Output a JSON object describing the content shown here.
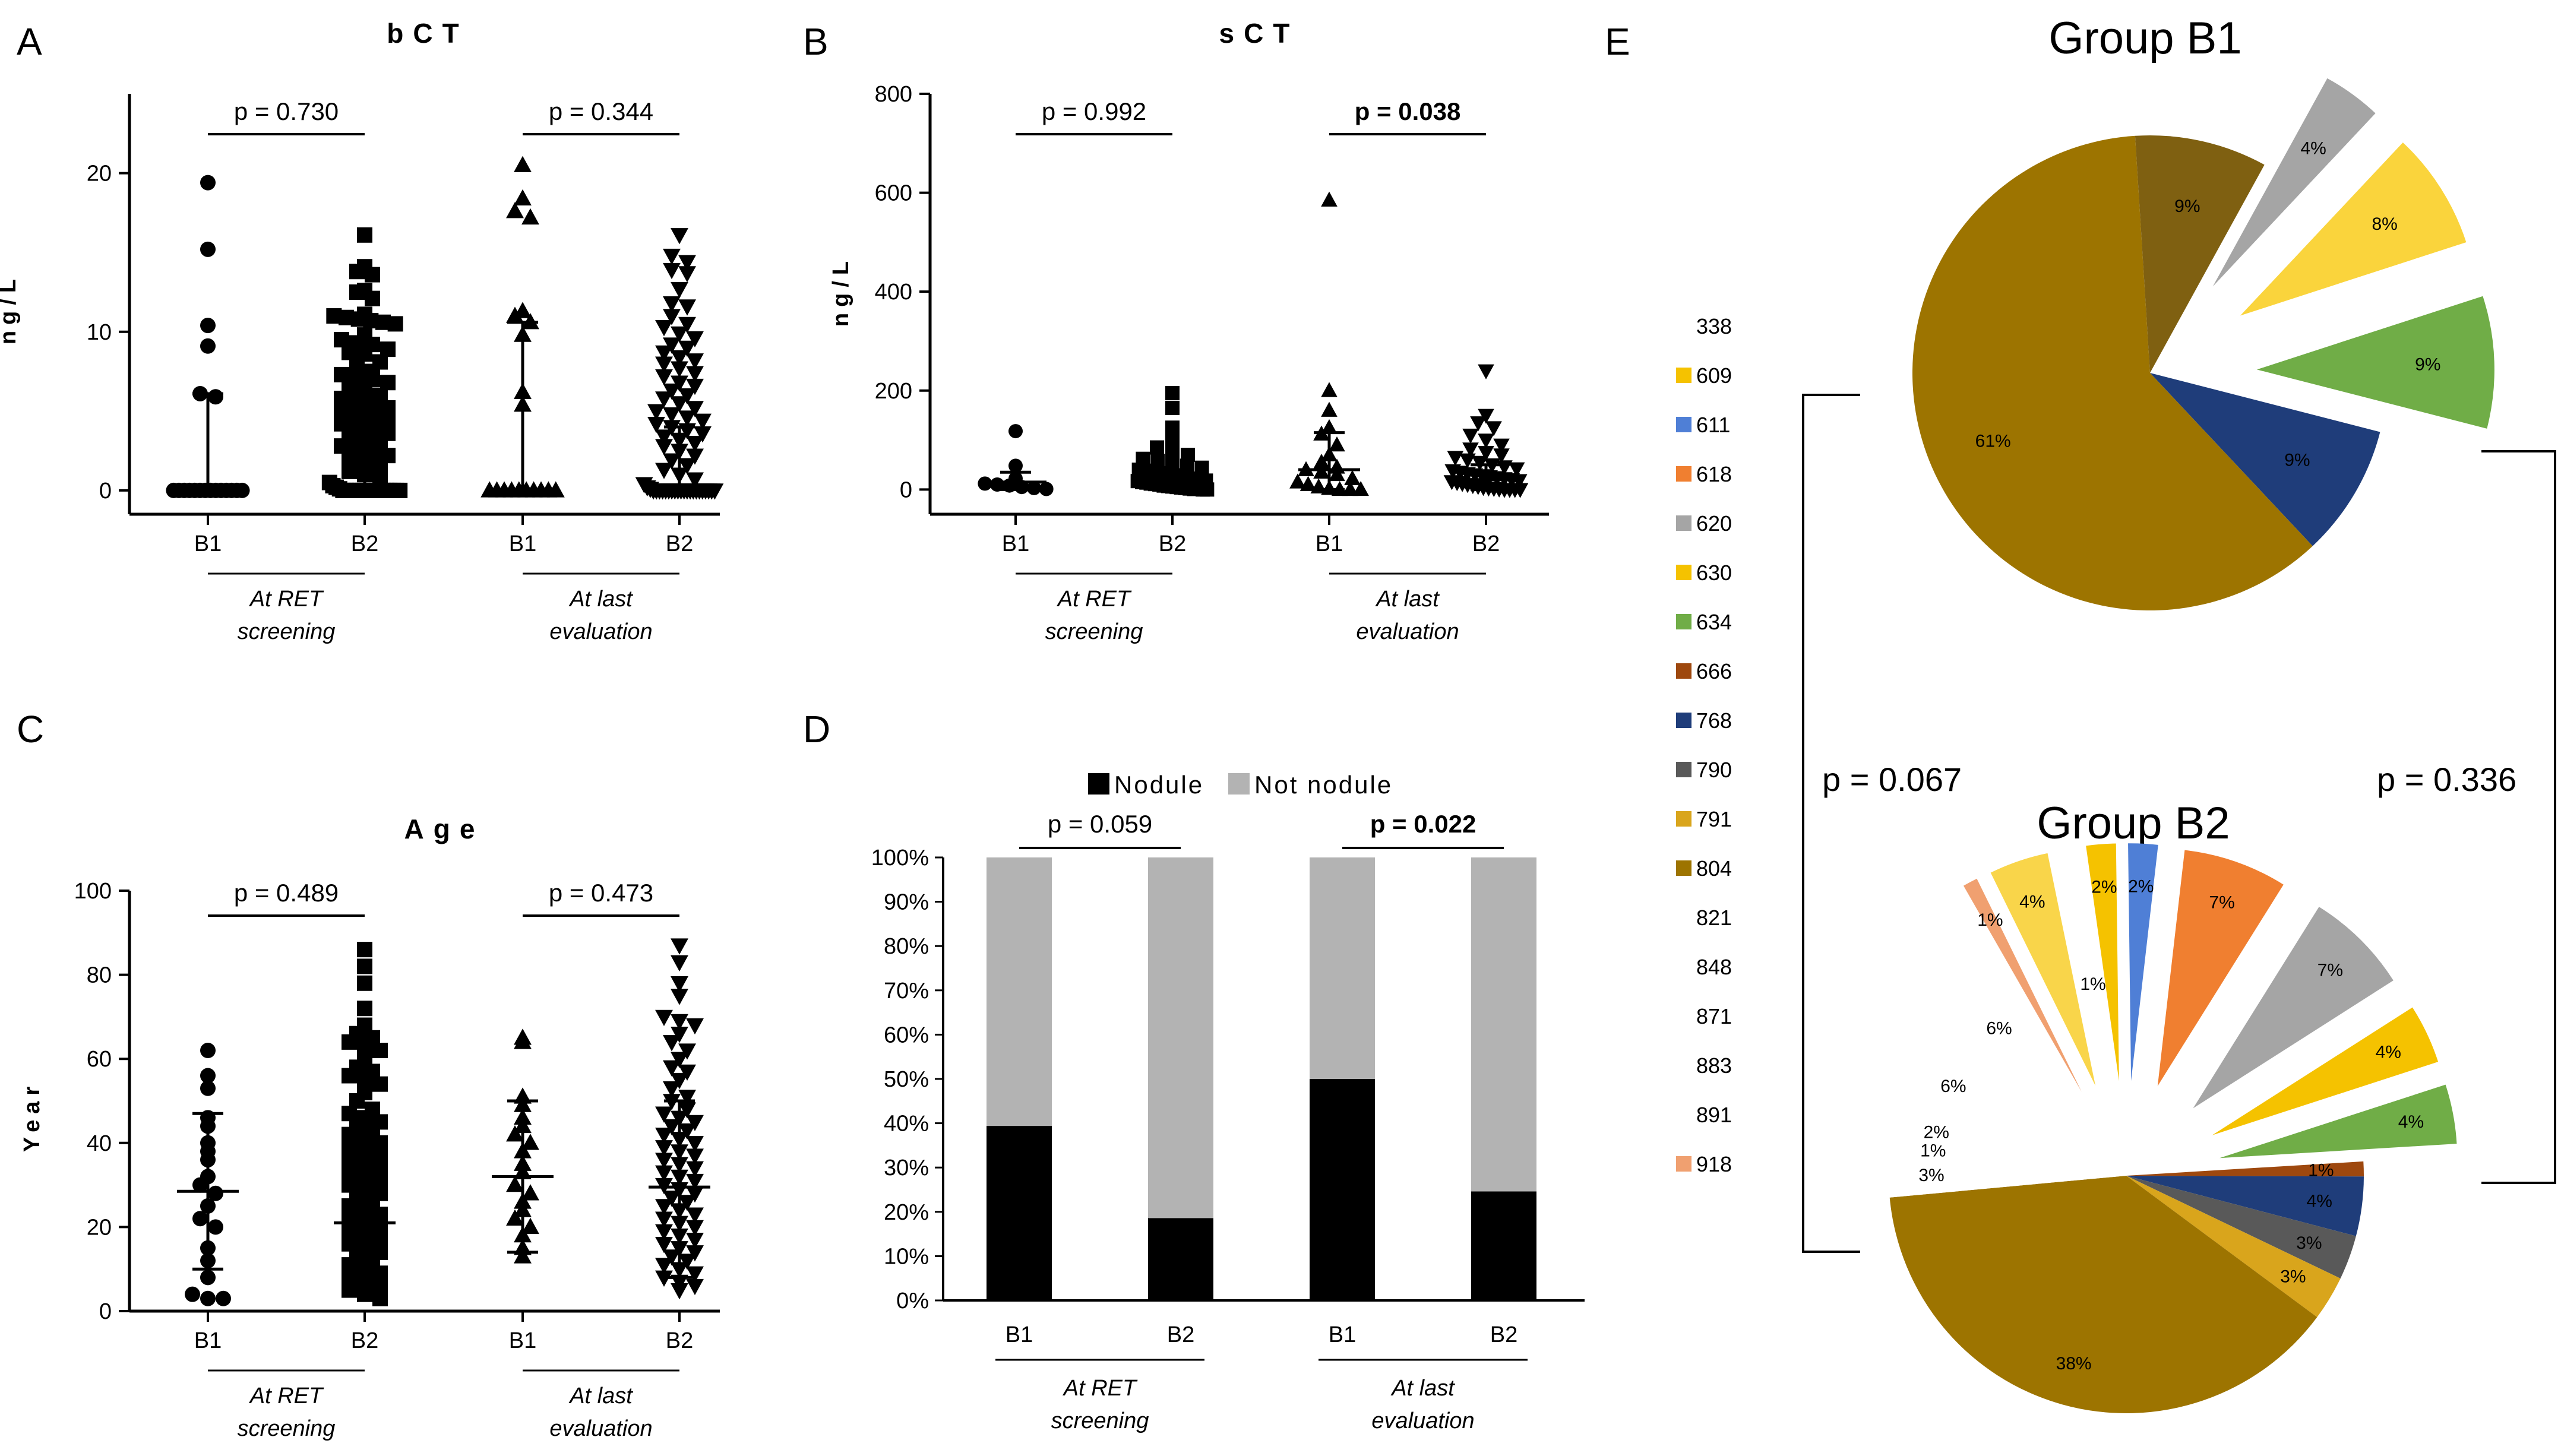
{
  "figure": {
    "panel_labels": [
      "A",
      "B",
      "C",
      "D",
      "E"
    ],
    "axis_category_labels": [
      "B1",
      "B2",
      "B1",
      "B2"
    ],
    "group_labels": [
      {
        "line1": "At RET",
        "line2": "screening"
      },
      {
        "line1": "At last",
        "line2": "evaluation"
      }
    ]
  },
  "chart_data": [
    {
      "panel": "A",
      "type": "scatter",
      "title": "bCT",
      "ylabel": "ng/L",
      "ylim": [
        -1.5,
        25
      ],
      "yticks": [
        "0",
        "10",
        "20"
      ],
      "categories": [
        "B1",
        "B2",
        "B1",
        "B2"
      ],
      "comparisons": [
        {
          "text": "p = 0.730",
          "bold": false,
          "between": [
            0,
            1
          ]
        },
        {
          "text": "p = 0.344",
          "bold": false,
          "between": [
            2,
            3
          ]
        }
      ],
      "series": [
        {
          "name": "B1 at RET screening",
          "marker": "circle",
          "median": 0,
          "iqr": [
            0,
            6.1
          ],
          "values": [
            19.4,
            15.2,
            10.4,
            9.1,
            6.1,
            5.9,
            0,
            0,
            0,
            0,
            0,
            0,
            0,
            0,
            0,
            0,
            0,
            0,
            0,
            0
          ]
        },
        {
          "name": "B2 at RET screening",
          "marker": "square",
          "median": 0,
          "iqr": [
            0,
            4.1
          ],
          "values": [
            16.1,
            14.1,
            13.8,
            13.6,
            12.6,
            12.5,
            12.1,
            11.1,
            11.0,
            10.9,
            10.8,
            10.7,
            10.6,
            10.5,
            9.8,
            9.5,
            9.3,
            9.2,
            8.9,
            8.7,
            8.6,
            8.1,
            7.9,
            7.5,
            7.3,
            7.1,
            7.0,
            6.8,
            6.5,
            6.2,
            6.0,
            5.8,
            5.6,
            5.4,
            5.2,
            5.0,
            4.8,
            4.6,
            4.4,
            4.2,
            4.0,
            3.8,
            3.6,
            3.4,
            3.2,
            3.0,
            2.8,
            2.6,
            2.4,
            2.2,
            2.0,
            1.8,
            1.5,
            1.2,
            1.0,
            0.8,
            0.5,
            0.3,
            0.2,
            0.1,
            0,
            0,
            0,
            0,
            0,
            0,
            0,
            0,
            0,
            0,
            0,
            0,
            0,
            0,
            0,
            0,
            0,
            0
          ]
        },
        {
          "name": "B1 at last evaluation",
          "marker": "triangle",
          "median": 0,
          "iqr": [
            0,
            10.6
          ],
          "values": [
            20.5,
            18.4,
            17.6,
            17.2,
            11.3,
            11.0,
            10.6,
            9.8,
            6.2,
            5.4,
            0,
            0,
            0,
            0,
            0,
            0,
            0,
            0,
            0,
            0
          ]
        },
        {
          "name": "B2 at last evaluation",
          "marker": "triangle-down",
          "median": 0.1,
          "iqr": [
            0,
            4.0
          ],
          "values": [
            16.1,
            14.8,
            14.4,
            13.9,
            13.7,
            12.7,
            11.8,
            11.6,
            11.0,
            10.5,
            10.3,
            9.9,
            9.6,
            9.2,
            9.0,
            8.7,
            8.4,
            8.2,
            8.0,
            7.7,
            7.4,
            7.2,
            6.8,
            6.6,
            6.3,
            6.0,
            5.8,
            5.5,
            5.2,
            5.0,
            4.8,
            4.6,
            4.4,
            4.2,
            4.0,
            3.8,
            3.6,
            3.4,
            3.2,
            3.0,
            2.8,
            2.5,
            2.2,
            1.9,
            1.6,
            1.3,
            1.0,
            0.7,
            0.4,
            0.2,
            0.1,
            0,
            0,
            0,
            0,
            0,
            0,
            0,
            0,
            0,
            0,
            0,
            0,
            0,
            0,
            0,
            0,
            0,
            0,
            0,
            0,
            0
          ]
        }
      ]
    },
    {
      "panel": "B",
      "type": "scatter",
      "title": "sCT",
      "ylabel": "ng/L",
      "ylim": [
        -50,
        800
      ],
      "yticks": [
        "0",
        "200",
        "400",
        "600",
        "800"
      ],
      "categories": [
        "B1",
        "B2",
        "B1",
        "B2"
      ],
      "comparisons": [
        {
          "text": "p = 0.992",
          "bold": false,
          "between": [
            0,
            1
          ]
        },
        {
          "text": "p = 0.038",
          "bold": true,
          "between": [
            2,
            3
          ]
        }
      ],
      "series": [
        {
          "name": "B1 at RET screening",
          "marker": "circle",
          "median": 15,
          "iqr": [
            0,
            35
          ],
          "values": [
            118,
            48,
            22,
            12,
            10,
            8,
            5,
            3,
            1
          ]
        },
        {
          "name": "B2 at RET screening",
          "marker": "square",
          "median": 20,
          "iqr": [
            0,
            40
          ],
          "values": [
            195,
            165,
            125,
            100,
            85,
            75,
            70,
            62,
            58,
            52,
            48,
            44,
            40,
            38,
            35,
            33,
            30,
            28,
            26,
            24,
            22,
            20,
            18,
            17,
            15,
            14,
            12,
            11,
            10,
            8,
            7,
            6,
            5,
            4,
            3,
            2,
            1,
            1,
            0,
            0
          ]
        },
        {
          "name": "B1 at last evaluation",
          "marker": "triangle",
          "median": 40,
          "iqr": [
            0,
            115
          ],
          "values": [
            585,
            200,
            160,
            125,
            112,
            90,
            70,
            55,
            45,
            40,
            35,
            30,
            22,
            15,
            10,
            5,
            2,
            0,
            0,
            0
          ]
        },
        {
          "name": "B2 at last evaluation",
          "marker": "triangle-down",
          "median": 20,
          "iqr": [
            0,
            50
          ],
          "values": [
            240,
            150,
            135,
            125,
            110,
            100,
            90,
            82,
            75,
            70,
            65,
            60,
            55,
            50,
            46,
            42,
            38,
            35,
            32,
            30,
            28,
            26,
            24,
            22,
            20,
            18,
            16,
            14,
            12,
            10,
            8,
            6,
            4,
            3,
            2,
            1,
            0,
            0,
            0,
            0
          ]
        }
      ]
    },
    {
      "panel": "C",
      "type": "scatter",
      "title": "Age",
      "ylabel": "Year",
      "ylim": [
        0,
        100
      ],
      "yticks": [
        "0",
        "20",
        "40",
        "60",
        "80",
        "100"
      ],
      "categories": [
        "B1",
        "B2",
        "B1",
        "B2"
      ],
      "comparisons": [
        {
          "text": "p = 0.489",
          "bold": false,
          "between": [
            0,
            1
          ]
        },
        {
          "text": "p = 0.473",
          "bold": false,
          "between": [
            2,
            3
          ]
        }
      ],
      "series": [
        {
          "name": "B1 at RET screening",
          "marker": "circle",
          "mean": 28.5,
          "sd_range": [
            10,
            47
          ],
          "values": [
            62,
            56,
            53,
            46,
            44,
            40,
            38,
            36,
            32,
            30,
            28,
            25,
            22,
            20,
            15,
            12,
            8,
            4,
            3,
            3
          ]
        },
        {
          "name": "B2 at RET screening",
          "marker": "square",
          "mean": 21,
          "sd_range": [
            5,
            39
          ],
          "values": [
            86,
            82,
            78,
            72,
            68,
            66,
            65,
            64,
            63,
            62,
            60,
            58,
            57,
            56,
            55,
            54,
            52,
            50,
            48,
            47,
            46,
            45,
            44,
            43,
            42,
            41,
            40,
            39,
            38,
            37,
            36,
            35,
            34,
            33,
            32,
            31,
            30,
            29,
            28,
            27,
            26,
            25,
            24,
            23,
            22,
            21,
            20,
            19,
            18,
            17,
            16,
            15,
            14,
            13,
            12,
            11,
            10,
            9,
            8,
            7,
            6,
            5,
            4,
            3
          ]
        },
        {
          "name": "B1 at last evaluation",
          "marker": "triangle",
          "mean": 32,
          "sd_range": [
            14,
            50
          ],
          "values": [
            65,
            64,
            51,
            49,
            46,
            44,
            42,
            40,
            38,
            35,
            33,
            30,
            28,
            26,
            24,
            22,
            20,
            18,
            15,
            13
          ]
        },
        {
          "name": "B2 at last evaluation",
          "marker": "triangle-down",
          "mean": 29.5,
          "sd_range": [
            8,
            50
          ],
          "values": [
            87,
            83,
            78,
            75,
            70,
            69,
            68,
            66,
            64,
            62,
            60,
            58,
            57,
            55,
            53,
            51,
            50,
            48,
            47,
            46,
            45,
            44,
            43,
            42,
            41,
            40,
            39,
            38,
            37,
            36,
            35,
            34,
            33,
            32,
            31,
            30,
            29,
            28,
            27,
            26,
            25,
            24,
            23,
            22,
            21,
            20,
            19,
            18,
            17,
            16,
            15,
            14,
            13,
            12,
            11,
            10,
            9,
            8,
            7,
            6,
            5
          ]
        }
      ]
    },
    {
      "panel": "D",
      "type": "bar",
      "stacked": true,
      "title": "",
      "ylim": [
        0,
        100
      ],
      "yticks": [
        "0%",
        "10%",
        "20%",
        "30%",
        "40%",
        "50%",
        "60%",
        "70%",
        "80%",
        "90%",
        "100%"
      ],
      "categories": [
        "B1",
        "B2",
        "B1",
        "B2"
      ],
      "legend": {
        "position": "top",
        "entries": [
          {
            "label": "Nodule",
            "color": "#000000"
          },
          {
            "label": "Not nodule",
            "color": "#b3b3b3"
          }
        ]
      },
      "comparisons": [
        {
          "text": "p = 0.059",
          "bold": false,
          "between": [
            0,
            1
          ]
        },
        {
          "text": "p = 0.022",
          "bold": true,
          "between": [
            2,
            3
          ]
        }
      ],
      "series": [
        {
          "name": "Nodule",
          "color": "#000000",
          "values": [
            39.4,
            18.6,
            50.0,
            24.6
          ]
        },
        {
          "name": "Not nodule",
          "color": "#b3b3b3",
          "values": [
            60.6,
            81.4,
            50.0,
            75.4
          ]
        }
      ]
    },
    {
      "panel": "E",
      "type": "pie",
      "title": "Group B1",
      "slices": [
        {
          "code": "634",
          "label": "9%",
          "value": 9,
          "color": "#70ad47",
          "explode": true
        },
        {
          "code": "768",
          "label": "9%",
          "value": 9,
          "color": "#1f3d7a",
          "explode": false
        },
        {
          "code": "804",
          "label": "61%",
          "value": 61,
          "color": "#9d7400",
          "explode": false
        },
        {
          "code": "790",
          "label": "9%",
          "value": 9,
          "color": "#7f6011",
          "explode": false
        },
        {
          "code": "620",
          "label": "4%",
          "value": 4,
          "color": "#a5a5a5",
          "explode": true
        },
        {
          "code": "630",
          "label": "8%",
          "value": 8,
          "color": "#fad43c",
          "explode": true
        }
      ]
    },
    {
      "panel": "E",
      "type": "pie",
      "title": "Group B2",
      "slices": [
        {
          "code": "634",
          "label": "4%",
          "value": 4,
          "color": "#70ad47",
          "explode": true
        },
        {
          "code": "666",
          "label": "1%",
          "value": 1,
          "color": "#9e480e",
          "explode": false
        },
        {
          "code": "768",
          "label": "4%",
          "value": 4,
          "color": "#1f3d7a",
          "explode": false
        },
        {
          "code": "790",
          "label": "3%",
          "value": 3,
          "color": "#595959",
          "explode": false
        },
        {
          "code": "791",
          "label": "3%",
          "value": 3,
          "color": "#d9a51c",
          "explode": false
        },
        {
          "code": "804",
          "label": "38%",
          "value": 38,
          "color": "#9d7400",
          "explode": false
        },
        {
          "code": "821",
          "label": "3%",
          "value": 3,
          "color": "#ffffff",
          "explode": false
        },
        {
          "code": "848",
          "label": "1%",
          "value": 1,
          "color": "#ffffff",
          "explode": false
        },
        {
          "code": "871",
          "label": "2%",
          "value": 2,
          "color": "#ffffff",
          "explode": false
        },
        {
          "code": "883",
          "label": "6%",
          "value": 6,
          "color": "#ffffff",
          "explode": false
        },
        {
          "code": "891",
          "label": "6%",
          "value": 6,
          "color": "#ffffff",
          "explode": false
        },
        {
          "code": "918",
          "label": "1%",
          "value": 1,
          "color": "#f0a070",
          "explode": true
        },
        {
          "code": "609",
          "label": "4%",
          "value": 4,
          "color": "#f9d54a",
          "explode": true
        },
        {
          "code": "630",
          "label": "1%",
          "value": 1,
          "color": "#ffffff",
          "explode": false
        },
        {
          "code": "630b",
          "label": "2%",
          "value": 2,
          "color": "#f5c200",
          "explode": true
        },
        {
          "code": "611",
          "label": "2%",
          "value": 2,
          "color": "#4f7fd6",
          "explode": true
        },
        {
          "code": "618",
          "label": "7%",
          "value": 7,
          "color": "#f07f30",
          "explode": true
        },
        {
          "code": "620",
          "label": "7%",
          "value": 7,
          "color": "#a5a5a5",
          "explode": true
        },
        {
          "code": "630c",
          "label": "4%",
          "value": 4,
          "color": "#f5c200",
          "explode": true
        }
      ]
    },
    {
      "panel": "E",
      "type": "legend",
      "codes": [
        {
          "code": "338",
          "color": null
        },
        {
          "code": "609",
          "color": "#f5c200"
        },
        {
          "code": "611",
          "color": "#4f7fd6"
        },
        {
          "code": "618",
          "color": "#f07f30"
        },
        {
          "code": "620",
          "color": "#a5a5a5"
        },
        {
          "code": "630",
          "color": "#f5c200"
        },
        {
          "code": "634",
          "color": "#70ad47"
        },
        {
          "code": "666",
          "color": "#9e480e"
        },
        {
          "code": "768",
          "color": "#1f3d7a"
        },
        {
          "code": "790",
          "color": "#595959"
        },
        {
          "code": "791",
          "color": "#d9a51c"
        },
        {
          "code": "804",
          "color": "#9d7400"
        },
        {
          "code": "821",
          "color": null
        },
        {
          "code": "848",
          "color": null
        },
        {
          "code": "871",
          "color": null
        },
        {
          "code": "883",
          "color": null
        },
        {
          "code": "891",
          "color": null
        },
        {
          "code": "918",
          "color": "#f0a070"
        }
      ],
      "comparisons": [
        {
          "text": "p = 0.067",
          "side": "left"
        },
        {
          "text": "p = 0.336",
          "side": "right"
        }
      ]
    }
  ]
}
